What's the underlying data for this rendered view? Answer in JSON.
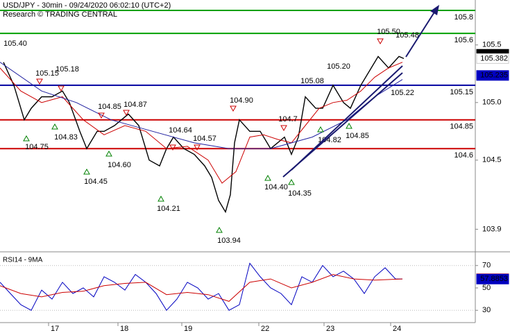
{
  "header": {
    "title": "USD/JPY - 30min - 09/24/2020 06:02:10 (UTC+2)",
    "subtitle": "Research © TRADING CENTRAL"
  },
  "chart_data": [
    {
      "type": "line",
      "xlim": [
        0,
        685
      ],
      "ylim": [
        103.71,
        105.89
      ],
      "xticks": [
        {
          "value": 70,
          "label": "17"
        },
        {
          "value": 170,
          "label": "18"
        },
        {
          "value": 262,
          "label": "19"
        },
        {
          "value": 373,
          "label": "22"
        },
        {
          "value": 467,
          "label": "23"
        },
        {
          "value": 563,
          "label": "24"
        }
      ],
      "yticks": [
        {
          "value": 105.5,
          "label": "105.5"
        },
        {
          "value": 105,
          "label": "105.0"
        },
        {
          "value": 104.5,
          "label": "104.5"
        },
        103.9
      ],
      "series": [
        {
          "color": "#000000",
          "x": [
            5,
            20,
            35,
            45,
            60,
            75,
            90,
            100,
            115,
            125,
            140,
            150,
            165,
            185,
            200,
            215,
            230,
            240,
            250,
            265,
            280,
            295,
            305,
            315,
            325,
            332,
            338,
            345,
            360,
            375,
            390,
            400,
            410,
            420,
            430,
            440,
            455,
            465,
            480,
            495,
            505,
            520,
            535,
            545,
            560,
            575,
            582
          ],
          "values": [
            105.35,
            105.15,
            104.85,
            104.95,
            105.05,
            105.05,
            105.1,
            105.0,
            104.75,
            104.6,
            104.75,
            104.75,
            104.8,
            104.9,
            104.8,
            104.5,
            104.45,
            104.6,
            104.7,
            104.6,
            104.55,
            104.45,
            104.35,
            104.15,
            104.05,
            104.2,
            104.65,
            104.85,
            104.75,
            104.75,
            104.6,
            104.65,
            104.7,
            104.55,
            104.7,
            105.05,
            104.95,
            104.95,
            105.15,
            105.0,
            104.95,
            105.15,
            105.3,
            105.4,
            105.3,
            105.4,
            105.382
          ]
        },
        {
          "color": "#cc0000",
          "x": [
            0,
            30,
            60,
            90,
            120,
            150,
            180,
            210,
            240,
            270,
            300,
            320,
            340,
            360,
            380,
            400,
            420,
            440,
            460,
            480,
            500,
            520,
            540,
            560,
            580
          ],
          "values": [
            105.3,
            105.1,
            105.0,
            105.05,
            104.85,
            104.72,
            104.8,
            104.75,
            104.6,
            104.62,
            104.5,
            104.3,
            104.4,
            104.7,
            104.72,
            104.68,
            104.65,
            104.8,
            104.95,
            105.0,
            105.02,
            105.1,
            105.22,
            105.3,
            105.35
          ]
        },
        {
          "color": "#2020a0",
          "x": [
            0,
            60,
            110,
            160,
            220,
            280,
            330,
            390,
            450,
            500,
            540,
            580
          ],
          "values": [
            105.35,
            105.1,
            105.0,
            104.85,
            104.75,
            104.65,
            104.6,
            104.6,
            104.7,
            104.85,
            105.05,
            105.2
          ]
        }
      ],
      "levels": [
        {
          "value": 105.8,
          "color": "#00a000"
        },
        {
          "value": 105.6,
          "color": "#00a000"
        },
        {
          "value": 105.15,
          "color": "#0000a0"
        },
        {
          "value": 104.85,
          "color": "#cc0000"
        },
        {
          "value": 104.6,
          "color": "#cc0000"
        }
      ],
      "markers": [
        {
          "value": 105.419,
          "bg": "#000000",
          "fg": "#ffffff"
        },
        {
          "value": 105.382,
          "bg": "#ffffff",
          "fg": "#cc0000"
        },
        {
          "value": 105.235,
          "bg": "#0000c0",
          "fg": "#ffffff"
        }
      ],
      "annotations": [
        {
          "value": 105.4,
          "label": "105.40"
        },
        {
          "value": 105.15,
          "label": "105.15"
        },
        {
          "value": 105.18,
          "label": "105.18"
        },
        {
          "value": 104.75,
          "label": "104.75"
        },
        {
          "value": 104.83,
          "label": "104.83"
        },
        {
          "value": 104.85,
          "label": "104.85"
        },
        {
          "value": 104.87,
          "label": "104.87"
        },
        {
          "value": 104.6,
          "label": "104.60"
        },
        {
          "value": 104.45,
          "label": "104.45"
        },
        {
          "value": 104.64,
          "label": "104.64"
        },
        {
          "value": 104.57,
          "label": "104.57"
        },
        {
          "value": 104.21,
          "label": "104.21"
        },
        {
          "value": 104.9,
          "label": "104.90"
        },
        {
          "value": 103.94,
          "label": "103.94"
        },
        {
          "value": 104.7,
          "label": "104.7"
        },
        {
          "value": 104.4,
          "label": "104.40"
        },
        {
          "value": 104.35,
          "label": "104.35"
        },
        {
          "value": 105.08,
          "label": "105.08"
        },
        {
          "value": 105.2,
          "label": "105.20"
        },
        {
          "value": 104.82,
          "label": "104.82"
        },
        {
          "value": 104.85,
          "label": "104.85"
        },
        {
          "value": 105.5,
          "label": "105.50"
        },
        {
          "value": 105.48,
          "label": "105.48"
        },
        {
          "value": 105.22,
          "label": "105.22"
        }
      ]
    },
    {
      "type": "line",
      "title": "RSI14 - 9MA",
      "xlim": [
        0,
        685
      ],
      "ylim": [
        19,
        81
      ],
      "yticks": [
        70,
        50,
        30
      ],
      "series": [
        {
          "color": "#0000c0",
          "x": [
            0,
            15,
            30,
            45,
            60,
            75,
            90,
            105,
            120,
            135,
            150,
            165,
            180,
            195,
            210,
            225,
            240,
            255,
            270,
            285,
            300,
            315,
            330,
            345,
            360,
            375,
            390,
            405,
            420,
            435,
            450,
            465,
            480,
            495,
            510,
            525,
            540,
            555,
            570,
            580
          ],
          "values": [
            55,
            45,
            35,
            30,
            48,
            40,
            55,
            45,
            50,
            42,
            60,
            55,
            48,
            62,
            55,
            45,
            30,
            40,
            55,
            50,
            40,
            45,
            30,
            35,
            72,
            60,
            50,
            45,
            35,
            60,
            55,
            70,
            60,
            65,
            58,
            45,
            60,
            68,
            58,
            58
          ]
        },
        {
          "color": "#cc0000",
          "x": [
            0,
            30,
            60,
            90,
            120,
            150,
            180,
            210,
            240,
            270,
            300,
            330,
            360,
            390,
            420,
            450,
            480,
            510,
            540,
            580
          ],
          "values": [
            52,
            45,
            42,
            46,
            47,
            52,
            54,
            55,
            44,
            46,
            44,
            38,
            55,
            58,
            50,
            55,
            62,
            58,
            57,
            58
          ]
        }
      ],
      "markers": [
        {
          "value": 58.1713,
          "bg": "#cc0000",
          "fg": "#ffffff"
        },
        {
          "value": 57.8853,
          "bg": "#0000c0",
          "fg": "#ffffff"
        }
      ]
    }
  ]
}
